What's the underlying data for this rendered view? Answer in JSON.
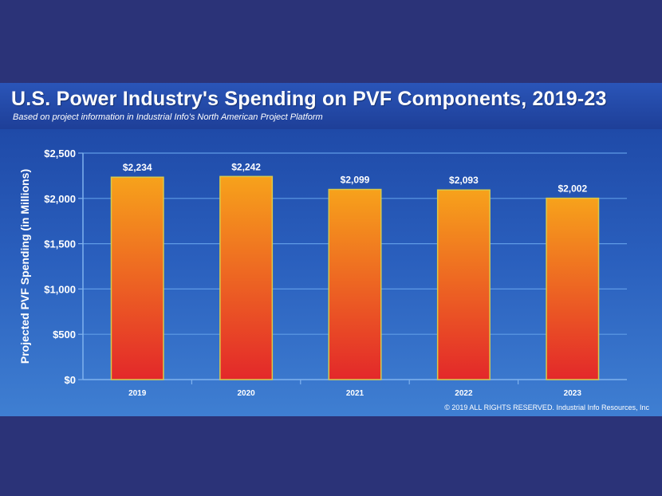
{
  "header": {
    "title": "U.S. Power Industry's Spending on PVF Components, 2019-23",
    "subtitle": "Based on project information in Industrial Info's North American Project Platform"
  },
  "footer": {
    "copyright": "© 2019 ALL RIGHTS RESERVED. Industrial Info Resources, Inc"
  },
  "colors": {
    "bar_top": "#f7a21b",
    "bar_bottom": "#e3282a",
    "bar_border": "#d8c94a",
    "gridline": "#5f9be6"
  },
  "chart_data": {
    "type": "bar",
    "title": "U.S. Power Industry's Spending on PVF Components, 2019-23",
    "subtitle": "Based on project information in Industrial Info's North American Project Platform",
    "xlabel": "",
    "ylabel": "Projected PVF Spending (in Millions)",
    "categories": [
      "2019",
      "2020",
      "2021",
      "2022",
      "2023"
    ],
    "values": [
      2234,
      2242,
      2099,
      2093,
      2002
    ],
    "data_labels": [
      "$2,234",
      "$2,242",
      "$2,099",
      "$2,093",
      "$2,002"
    ],
    "ylim": [
      0,
      2500
    ],
    "yticks": [
      0,
      500,
      1000,
      1500,
      2000,
      2500
    ],
    "ytick_labels": [
      "$0",
      "$500",
      "$1,000",
      "$1,500",
      "$2,000",
      "$2,500"
    ],
    "grid": true,
    "legend": "none"
  }
}
